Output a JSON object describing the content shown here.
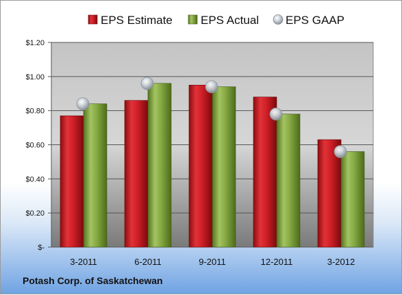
{
  "chart_data": {
    "type": "bar",
    "title": "",
    "xlabel": "",
    "ylabel": "",
    "categories": [
      "3-2011",
      "6-2011",
      "9-2011",
      "12-2011",
      "3-2012"
    ],
    "series": [
      {
        "name": "EPS Estimate",
        "type": "bar",
        "color": "#c81e24",
        "values": [
          0.77,
          0.86,
          0.95,
          0.88,
          0.63
        ]
      },
      {
        "name": "EPS Actual",
        "type": "bar",
        "color": "#7ea43b",
        "values": [
          0.84,
          0.96,
          0.94,
          0.78,
          0.56
        ]
      },
      {
        "name": "EPS GAAP",
        "type": "marker",
        "color": "#b8c0c8",
        "values": [
          0.84,
          0.96,
          0.94,
          0.78,
          0.56
        ]
      }
    ],
    "ylim": [
      0,
      1.2
    ],
    "yticks": [
      0,
      0.2,
      0.4,
      0.6,
      0.8,
      1.0,
      1.2
    ],
    "ytick_labels": [
      "$-",
      "$0.20",
      "$0.40",
      "$0.60",
      "$0.80",
      "$1.00",
      "$1.20"
    ],
    "grid": true,
    "legend_position": "top"
  },
  "footer": {
    "company": "Potash Corp. of Saskatchewan"
  }
}
